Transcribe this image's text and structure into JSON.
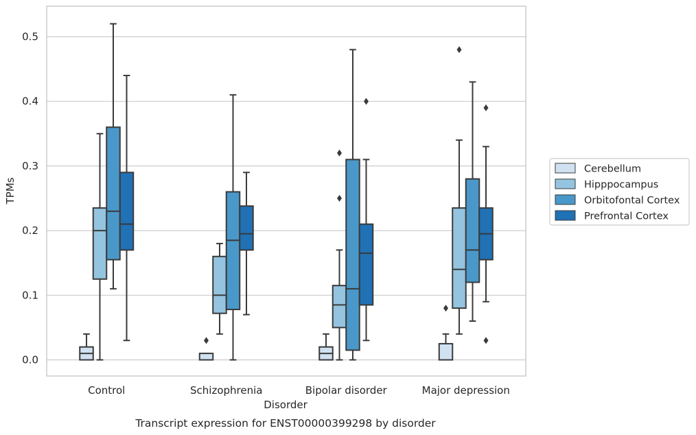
{
  "chart_data": {
    "type": "boxplot",
    "caption": "Transcript expression for ENST00000399298 by disorder",
    "xlabel": "Disorder",
    "ylabel": "TPMs",
    "ylim": [
      -0.025,
      0.545
    ],
    "yticks": [
      0.0,
      0.1,
      0.2,
      0.3,
      0.4,
      0.5
    ],
    "ytick_labels": [
      "0.0",
      "0.1",
      "0.2",
      "0.3",
      "0.4",
      "0.5"
    ],
    "categories": [
      "Control",
      "Schizophrenia",
      "Bipolar disorder",
      "Major depression"
    ],
    "grid": true,
    "legend_position": "right",
    "series": [
      {
        "name": "Cerebellum",
        "color": "#d0e1f2",
        "boxes": [
          {
            "whisker_low": 0.0,
            "q1": 0.0,
            "median": 0.01,
            "q3": 0.02,
            "whisker_high": 0.04,
            "outliers": []
          },
          {
            "whisker_low": 0.0,
            "q1": 0.0,
            "median": 0.0,
            "q3": 0.01,
            "whisker_high": 0.01,
            "outliers": [
              0.03
            ]
          },
          {
            "whisker_low": 0.0,
            "q1": 0.0,
            "median": 0.01,
            "q3": 0.02,
            "whisker_high": 0.04,
            "outliers": []
          },
          {
            "whisker_low": 0.0,
            "q1": 0.0,
            "median": 0.0,
            "q3": 0.025,
            "whisker_high": 0.04,
            "outliers": [
              0.08
            ]
          }
        ]
      },
      {
        "name": "Hipppocampus",
        "color": "#94c4df",
        "boxes": [
          {
            "whisker_low": 0.0,
            "q1": 0.125,
            "median": 0.2,
            "q3": 0.235,
            "whisker_high": 0.35,
            "outliers": []
          },
          {
            "whisker_low": 0.04,
            "q1": 0.072,
            "median": 0.1,
            "q3": 0.16,
            "whisker_high": 0.18,
            "outliers": []
          },
          {
            "whisker_low": 0.0,
            "q1": 0.05,
            "median": 0.085,
            "q3": 0.115,
            "whisker_high": 0.17,
            "outliers": [
              0.25,
              0.32
            ]
          },
          {
            "whisker_low": 0.04,
            "q1": 0.08,
            "median": 0.14,
            "q3": 0.235,
            "whisker_high": 0.34,
            "outliers": [
              0.48
            ]
          }
        ]
      },
      {
        "name": "Orbitofontal Cortex",
        "color": "#4a98c9",
        "boxes": [
          {
            "whisker_low": 0.11,
            "q1": 0.155,
            "median": 0.23,
            "q3": 0.36,
            "whisker_high": 0.52,
            "outliers": []
          },
          {
            "whisker_low": 0.0,
            "q1": 0.078,
            "median": 0.185,
            "q3": 0.26,
            "whisker_high": 0.41,
            "outliers": []
          },
          {
            "whisker_low": 0.0,
            "q1": 0.015,
            "median": 0.11,
            "q3": 0.31,
            "whisker_high": 0.48,
            "outliers": []
          },
          {
            "whisker_low": 0.06,
            "q1": 0.12,
            "median": 0.17,
            "q3": 0.28,
            "whisker_high": 0.43,
            "outliers": []
          }
        ]
      },
      {
        "name": "Prefrontal Cortex",
        "color": "#2171b5",
        "boxes": [
          {
            "whisker_low": 0.03,
            "q1": 0.17,
            "median": 0.21,
            "q3": 0.29,
            "whisker_high": 0.44,
            "outliers": []
          },
          {
            "whisker_low": 0.07,
            "q1": 0.17,
            "median": 0.195,
            "q3": 0.238,
            "whisker_high": 0.29,
            "outliers": []
          },
          {
            "whisker_low": 0.03,
            "q1": 0.085,
            "median": 0.165,
            "q3": 0.21,
            "whisker_high": 0.31,
            "outliers": [
              0.4
            ]
          },
          {
            "whisker_low": 0.09,
            "q1": 0.155,
            "median": 0.195,
            "q3": 0.235,
            "whisker_high": 0.33,
            "outliers": [
              0.03,
              0.39
            ]
          }
        ]
      }
    ]
  }
}
